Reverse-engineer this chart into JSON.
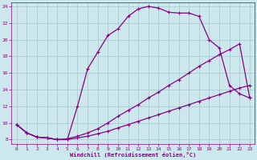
{
  "xlabel": "Windchill (Refroidissement éolien,°C)",
  "xlim": [
    -0.5,
    23.5
  ],
  "ylim": [
    7.5,
    24.5
  ],
  "yticks": [
    8,
    10,
    12,
    14,
    16,
    18,
    20,
    22,
    24
  ],
  "xticks": [
    0,
    1,
    2,
    3,
    4,
    5,
    6,
    7,
    8,
    9,
    10,
    11,
    12,
    13,
    14,
    15,
    16,
    17,
    18,
    19,
    20,
    21,
    22,
    23
  ],
  "bg_color": "#cce8ec",
  "grid_color": "#aaccd4",
  "line_color": "#880088",
  "curve1_x": [
    0,
    1,
    2,
    3,
    4,
    5,
    6,
    7,
    8,
    9,
    10,
    11,
    12,
    13,
    14,
    15,
    16,
    17,
    18,
    19,
    20,
    21,
    22,
    23
  ],
  "curve1_y": [
    9.8,
    8.8,
    8.3,
    8.2,
    8.0,
    8.0,
    12.0,
    16.5,
    18.5,
    20.5,
    21.3,
    22.8,
    23.7,
    24.0,
    23.8,
    23.3,
    23.2,
    23.2,
    22.8,
    20.0,
    19.0,
    14.5,
    13.5,
    13.0
  ],
  "curve2_x": [
    0,
    1,
    2,
    3,
    4,
    5,
    6,
    7,
    8,
    9,
    10,
    11,
    12,
    13,
    14,
    15,
    16,
    17,
    18,
    19,
    20,
    21,
    22,
    23
  ],
  "curve2_y": [
    9.8,
    8.8,
    8.3,
    8.2,
    8.0,
    8.1,
    8.4,
    8.8,
    9.3,
    10.0,
    10.8,
    11.5,
    12.2,
    13.0,
    13.7,
    14.5,
    15.2,
    16.0,
    16.8,
    17.5,
    18.2,
    18.8,
    19.5,
    13.0
  ],
  "curve3_x": [
    0,
    1,
    2,
    3,
    4,
    5,
    6,
    7,
    8,
    9,
    10,
    11,
    12,
    13,
    14,
    15,
    16,
    17,
    18,
    19,
    20,
    21,
    22,
    23
  ],
  "curve3_y": [
    9.8,
    8.8,
    8.3,
    8.2,
    8.0,
    8.0,
    8.2,
    8.4,
    8.7,
    9.0,
    9.4,
    9.8,
    10.2,
    10.6,
    11.0,
    11.4,
    11.8,
    12.2,
    12.6,
    13.0,
    13.4,
    13.8,
    14.2,
    14.5
  ]
}
